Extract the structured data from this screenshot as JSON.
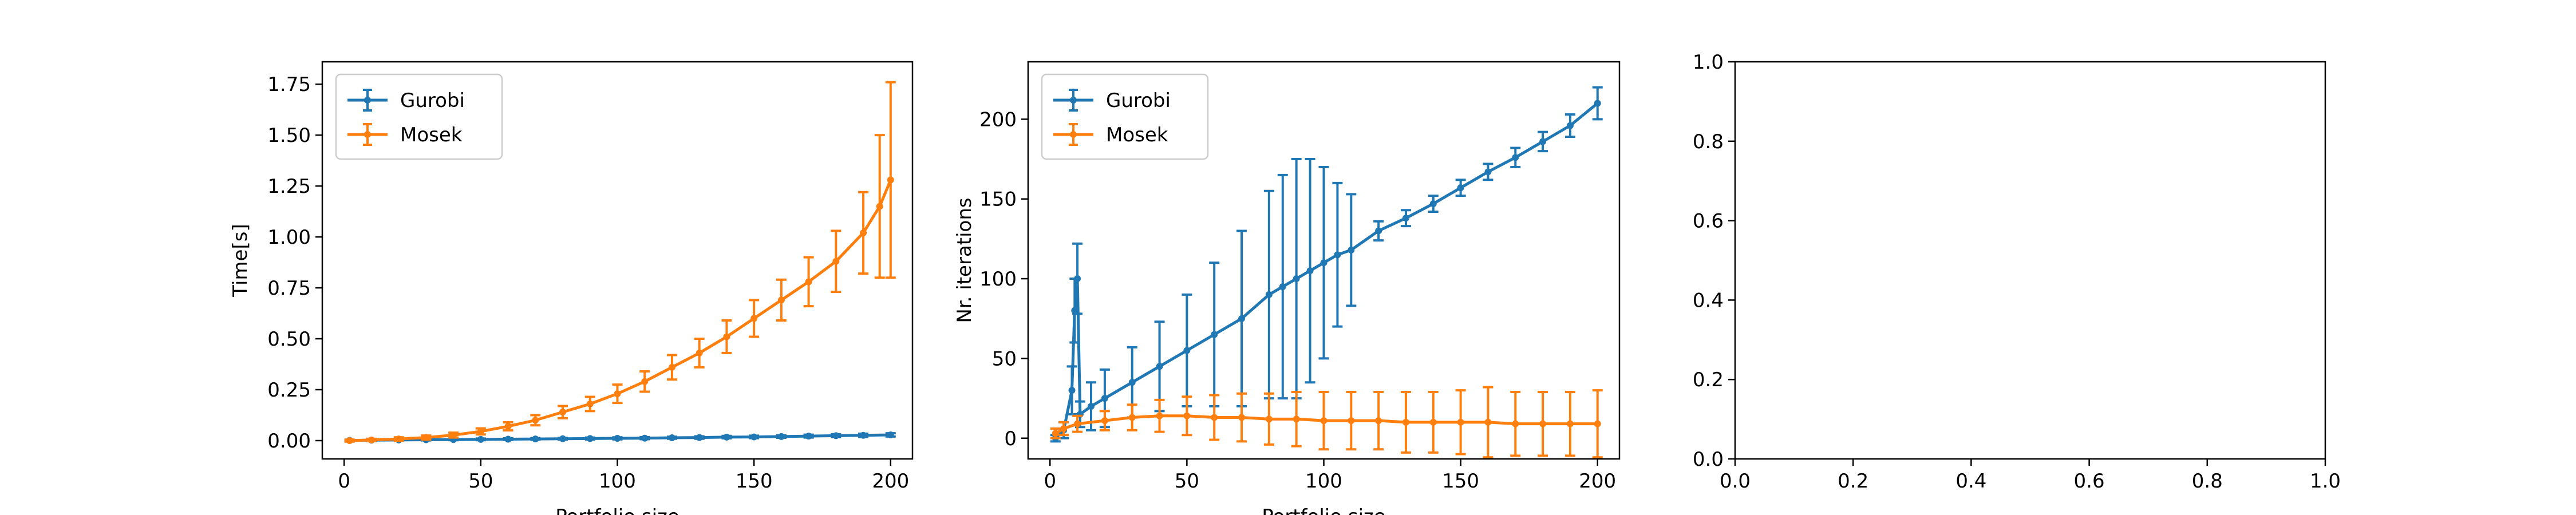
{
  "colors": {
    "gurobi": "#1f77b4",
    "mosek": "#ff7f0e"
  },
  "chart_data": [
    {
      "type": "line",
      "error_bars": true,
      "xlabel": "Portfolio size",
      "ylabel": "Time[s]",
      "xlim": [
        -8,
        208
      ],
      "ylim": [
        -0.09,
        1.86
      ],
      "xticks": [
        0,
        50,
        100,
        150,
        200
      ],
      "yticks": [
        0.0,
        0.25,
        0.5,
        0.75,
        1.0,
        1.25,
        1.5,
        1.75
      ],
      "ytick_labels": [
        "0.00",
        "0.25",
        "0.50",
        "0.75",
        "1.00",
        "1.25",
        "1.50",
        "1.75"
      ],
      "legend": {
        "position": "top-left",
        "entries": [
          "Gurobi",
          "Mosek"
        ]
      },
      "series": [
        {
          "name": "Gurobi",
          "x": [
            2,
            10,
            20,
            30,
            40,
            50,
            60,
            70,
            80,
            90,
            100,
            110,
            120,
            130,
            140,
            150,
            160,
            170,
            180,
            190,
            200
          ],
          "y": [
            0.001,
            0.002,
            0.003,
            0.004,
            0.005,
            0.006,
            0.007,
            0.008,
            0.009,
            0.01,
            0.011,
            0.012,
            0.014,
            0.015,
            0.017,
            0.018,
            0.02,
            0.022,
            0.024,
            0.026,
            0.028
          ],
          "err": [
            0.003,
            0.003,
            0.003,
            0.003,
            0.003,
            0.004,
            0.004,
            0.004,
            0.004,
            0.005,
            0.005,
            0.005,
            0.005,
            0.006,
            0.006,
            0.006,
            0.006,
            0.007,
            0.007,
            0.008,
            0.008
          ]
        },
        {
          "name": "Mosek",
          "x": [
            2,
            10,
            20,
            30,
            40,
            50,
            60,
            70,
            80,
            90,
            100,
            110,
            120,
            130,
            140,
            150,
            160,
            170,
            180,
            190,
            196,
            200
          ],
          "y": [
            0.0,
            0.003,
            0.008,
            0.015,
            0.027,
            0.045,
            0.07,
            0.1,
            0.14,
            0.18,
            0.23,
            0.29,
            0.36,
            0.43,
            0.51,
            0.6,
            0.69,
            0.78,
            0.88,
            1.02,
            1.15,
            1.28
          ],
          "err": [
            0.005,
            0.006,
            0.008,
            0.01,
            0.012,
            0.015,
            0.02,
            0.025,
            0.03,
            0.035,
            0.045,
            0.05,
            0.06,
            0.07,
            0.08,
            0.09,
            0.1,
            0.12,
            0.15,
            0.2,
            0.35,
            0.48
          ]
        }
      ]
    },
    {
      "type": "line",
      "error_bars": true,
      "xlabel": "Portfolio size",
      "ylabel": "Nr. iterations",
      "xlim": [
        -8,
        208
      ],
      "ylim": [
        -13,
        236
      ],
      "xticks": [
        0,
        50,
        100,
        150,
        200
      ],
      "yticks": [
        0,
        50,
        100,
        150,
        200
      ],
      "legend": {
        "position": "top-left",
        "entries": [
          "Gurobi",
          "Mosek"
        ]
      },
      "series": [
        {
          "name": "Gurobi",
          "x": [
            2,
            5,
            8,
            9,
            10,
            11,
            15,
            20,
            30,
            40,
            50,
            60,
            70,
            80,
            85,
            90,
            95,
            100,
            105,
            110,
            120,
            130,
            140,
            150,
            160,
            170,
            180,
            190,
            200
          ],
          "y": [
            0,
            5,
            30,
            80,
            100,
            15,
            20,
            25,
            35,
            45,
            55,
            65,
            75,
            90,
            95,
            100,
            105,
            110,
            115,
            118,
            130,
            138,
            147,
            157,
            167,
            176,
            186,
            196,
            210
          ],
          "err": [
            2,
            5,
            15,
            20,
            22,
            8,
            15,
            18,
            22,
            28,
            35,
            45,
            55,
            65,
            70,
            75,
            70,
            60,
            45,
            35,
            6,
            5,
            5,
            5,
            5,
            6,
            6,
            7,
            10
          ]
        },
        {
          "name": "Mosek",
          "x": [
            2,
            5,
            10,
            20,
            30,
            40,
            50,
            60,
            70,
            80,
            90,
            100,
            110,
            120,
            130,
            140,
            150,
            160,
            170,
            180,
            190,
            200
          ],
          "y": [
            3,
            6,
            9,
            11,
            13,
            14,
            14,
            13,
            13,
            12,
            12,
            11,
            11,
            11,
            10,
            10,
            10,
            10,
            9,
            9,
            9,
            9
          ],
          "err": [
            3,
            4,
            5,
            6,
            8,
            10,
            12,
            14,
            15,
            16,
            17,
            18,
            18,
            18,
            19,
            19,
            20,
            22,
            20,
            20,
            20,
            21
          ]
        }
      ]
    },
    {
      "type": "line",
      "xlabel": "",
      "ylabel": "",
      "xlim": [
        0,
        1
      ],
      "ylim": [
        0,
        1
      ],
      "xticks": [
        0.0,
        0.2,
        0.4,
        0.6,
        0.8,
        1.0
      ],
      "yticks": [
        0.0,
        0.2,
        0.4,
        0.6,
        0.8,
        1.0
      ],
      "xtick_labels": [
        "0.0",
        "0.2",
        "0.4",
        "0.6",
        "0.8",
        "1.0"
      ],
      "ytick_labels": [
        "0.0",
        "0.2",
        "0.4",
        "0.6",
        "0.8",
        "1.0"
      ],
      "series": []
    }
  ]
}
